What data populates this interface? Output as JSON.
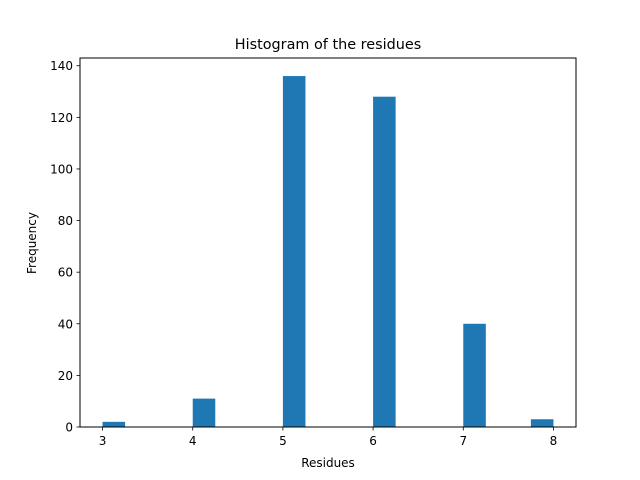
{
  "chart_data": {
    "type": "bar",
    "title": "Histogram of the residues",
    "xlabel": "Residues",
    "ylabel": "Frequency",
    "bin_width": 0.25,
    "bins": [
      {
        "left": 3.0,
        "count": 2
      },
      {
        "left": 4.0,
        "count": 11
      },
      {
        "left": 5.0,
        "count": 136
      },
      {
        "left": 6.0,
        "count": 128
      },
      {
        "left": 7.0,
        "count": 40
      },
      {
        "left": 7.75,
        "count": 3
      }
    ],
    "xlim": [
      2.75,
      8.25
    ],
    "ylim": [
      0,
      143
    ],
    "x_ticks": [
      3,
      4,
      5,
      6,
      7,
      8
    ],
    "y_ticks": [
      0,
      20,
      40,
      60,
      80,
      100,
      120,
      140
    ],
    "grid": false,
    "legend": "none",
    "bar_color": "#1f77b4"
  }
}
